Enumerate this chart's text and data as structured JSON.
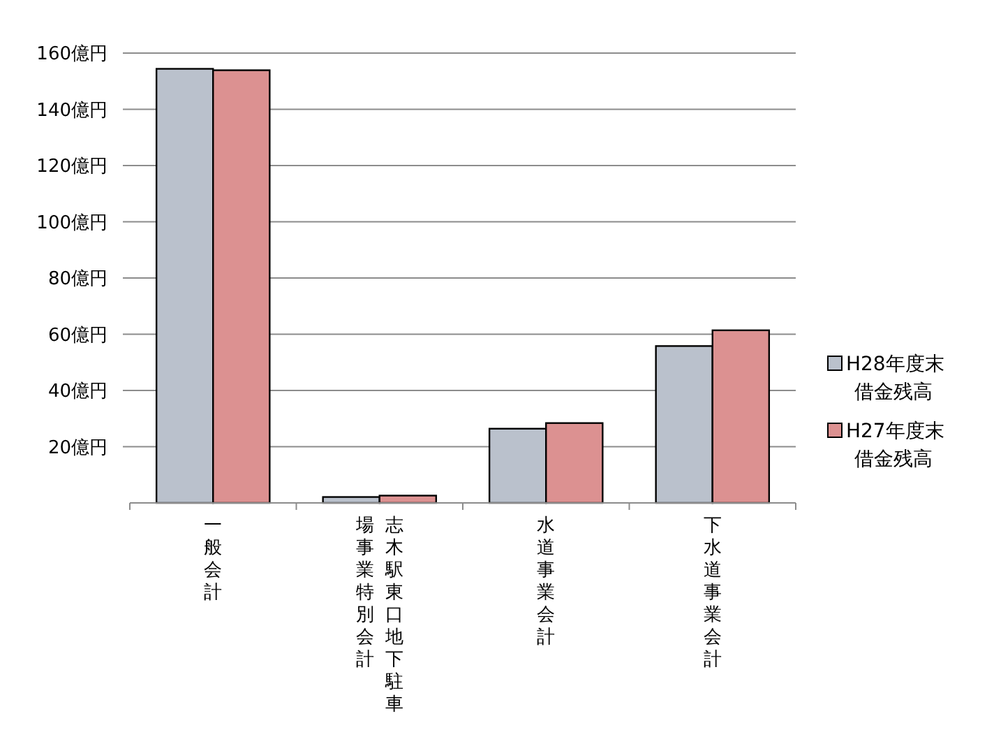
{
  "chart_data": {
    "type": "bar",
    "categories": [
      "一般会計",
      "志木駅東口地下駐車場事業特別会計",
      "水道事業会計",
      "下水道事業会計"
    ],
    "series": [
      {
        "name": "H28年度末借金残高",
        "color": "#bac1cc",
        "values": [
          154.4,
          2.1,
          26.4,
          55.8
        ]
      },
      {
        "name": "H27年度末借金残高",
        "color": "#dc9191",
        "values": [
          153.9,
          2.6,
          28.4,
          61.4
        ]
      }
    ],
    "ylim": [
      0,
      160
    ],
    "yticks": [
      {
        "value": 20,
        "label": "20億円"
      },
      {
        "value": 40,
        "label": "40億円"
      },
      {
        "value": 60,
        "label": "60億円"
      },
      {
        "value": 80,
        "label": "80億円"
      },
      {
        "value": 100,
        "label": "100億円"
      },
      {
        "value": 120,
        "label": "120億円"
      },
      {
        "value": 140,
        "label": "140億円"
      },
      {
        "value": 160,
        "label": "160億円"
      }
    ],
    "grid": "y",
    "legend": "right"
  }
}
